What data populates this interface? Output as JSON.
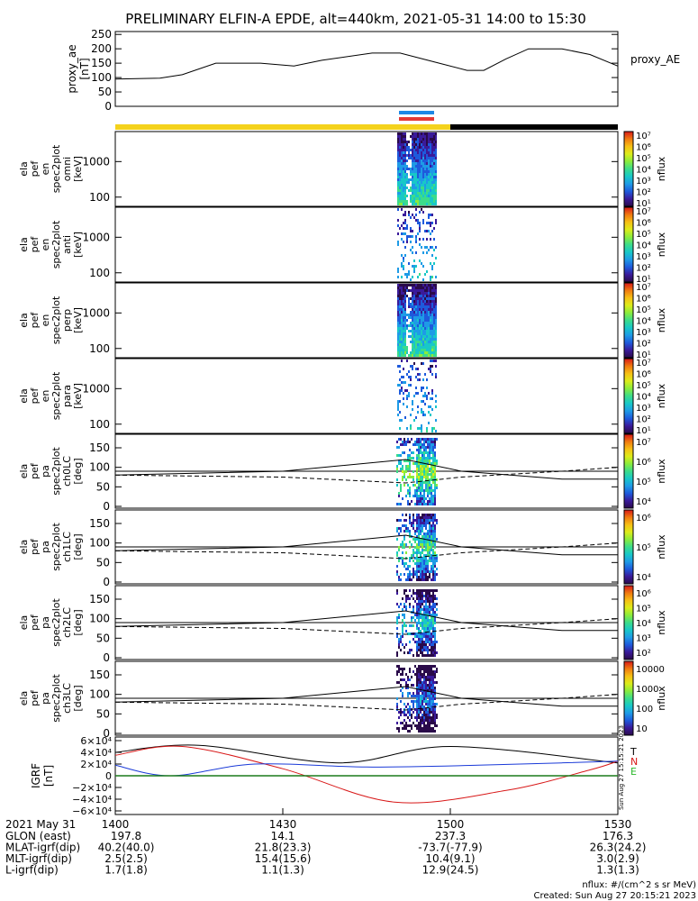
{
  "title": "PRELIMINARY ELFIN-A EPDE, alt=440km, 2021-05-31 14:00 to 15:30",
  "colors": {
    "gold": "#f4d21c",
    "black": "#000000",
    "blue": "#1e88e5",
    "red": "#e53935"
  },
  "chart_data": [
    {
      "type": "line",
      "panel": "proxy_ae",
      "ylabel": [
        "proxy_ae",
        "[nT]"
      ],
      "legend": "proxy_AE",
      "yticks": [
        "0",
        "50",
        "100",
        "150",
        "200",
        "250"
      ],
      "ylim": [
        0,
        260
      ],
      "xlim_min": [
        0,
        90
      ],
      "series": [
        {
          "name": "proxy_AE",
          "x": [
            0,
            8,
            12,
            18,
            26,
            32,
            37,
            46,
            51,
            58,
            63,
            66,
            70,
            74,
            80,
            85,
            90
          ],
          "y": [
            95,
            98,
            110,
            150,
            150,
            140,
            160,
            185,
            185,
            150,
            125,
            125,
            165,
            200,
            200,
            180,
            140
          ]
        }
      ]
    },
    {
      "type": "spectrogram",
      "panels": [
        {
          "ylabel": [
            "ela",
            "pef",
            "en",
            "spec2plot",
            "omni",
            "[keV]"
          ],
          "yticks": [
            "100",
            "1000"
          ],
          "cbar_ticks": [
            "10¹",
            "10²",
            "10³",
            "10⁴",
            "10⁵",
            "10⁶",
            "10⁷"
          ],
          "cbar_label": "nflux"
        },
        {
          "ylabel": [
            "ela",
            "pef",
            "en",
            "spec2plot",
            "anti",
            "[keV]"
          ],
          "yticks": [
            "100",
            "1000"
          ],
          "cbar_ticks": [
            "10¹",
            "10²",
            "10³",
            "10⁴",
            "10⁵",
            "10⁶",
            "10⁷"
          ],
          "cbar_label": "nflux"
        },
        {
          "ylabel": [
            "ela",
            "pef",
            "en",
            "spec2plot",
            "perp",
            "[keV]"
          ],
          "yticks": [
            "100",
            "1000"
          ],
          "cbar_ticks": [
            "10¹",
            "10²",
            "10³",
            "10⁴",
            "10⁵",
            "10⁶",
            "10⁷"
          ],
          "cbar_label": "nflux"
        },
        {
          "ylabel": [
            "ela",
            "pef",
            "en",
            "spec2plot",
            "para",
            "[keV]"
          ],
          "yticks": [
            "100",
            "1000"
          ],
          "cbar_ticks": [
            "10¹",
            "10²",
            "10³",
            "10⁴",
            "10⁵",
            "10⁶",
            "10⁷"
          ],
          "cbar_label": "nflux"
        }
      ]
    },
    {
      "type": "spectrogram",
      "panels": [
        {
          "ylabel": [
            "ela",
            "pef",
            "pa",
            "spec2plot",
            "ch0LC",
            "[deg]"
          ],
          "yticks": [
            "0",
            "50",
            "100",
            "150"
          ],
          "cbar_ticks": [
            "10⁴",
            "10⁵",
            "10⁶",
            "10⁷"
          ],
          "cbar_label": "nflux"
        },
        {
          "ylabel": [
            "ela",
            "pef",
            "pa",
            "spec2plot",
            "ch1LC",
            "[deg]"
          ],
          "yticks": [
            "0",
            "50",
            "100",
            "150"
          ],
          "cbar_ticks": [
            "10⁴",
            "10⁵",
            "10⁶"
          ],
          "cbar_label": "nflux"
        },
        {
          "ylabel": [
            "ela",
            "pef",
            "pa",
            "spec2plot",
            "ch2LC",
            "[deg]"
          ],
          "yticks": [
            "0",
            "50",
            "100",
            "150"
          ],
          "cbar_ticks": [
            "10²",
            "10³",
            "10⁴",
            "10⁵",
            "10⁶"
          ],
          "cbar_label": "nflux"
        },
        {
          "ylabel": [
            "ela",
            "pef",
            "pa",
            "spec2plot",
            "ch3LC",
            "[deg]"
          ],
          "yticks": [
            "0",
            "50",
            "100",
            "150"
          ],
          "cbar_ticks": [
            "10",
            "100",
            "1000",
            "10000"
          ],
          "cbar_label": "nflux"
        }
      ],
      "loss_cone_deg": {
        "x": [
          0,
          30,
          52,
          62,
          80,
          90
        ],
        "upper": [
          80,
          90,
          120,
          90,
          70,
          70
        ],
        "lower_dashed": [
          80,
          75,
          60,
          75,
          90,
          100
        ]
      }
    },
    {
      "type": "line",
      "panel": "igrf",
      "ylabel": [
        "IGRF",
        "[nT]"
      ],
      "yticks": [
        "−6×10⁴",
        "−4×10⁴",
        "−2×10⁴",
        "0",
        "2×10⁴",
        "4×10⁴",
        "6×10⁴"
      ],
      "ylim": [
        -60000,
        60000
      ],
      "legend": [
        "T",
        "N",
        "E"
      ],
      "series": [
        {
          "name": "T",
          "x": [
            0,
            15,
            40,
            60,
            90
          ],
          "y": [
            40000,
            52000,
            22000,
            50000,
            22000
          ]
        },
        {
          "name": "N",
          "x": [
            0,
            12,
            30,
            50,
            70,
            85,
            90
          ],
          "y": [
            35000,
            50000,
            12000,
            -45000,
            -25000,
            10000,
            25000
          ]
        },
        {
          "name": "E",
          "x": [
            0,
            10,
            25,
            45,
            65,
            80,
            90
          ],
          "y": [
            18000,
            0,
            20000,
            15000,
            18000,
            22000,
            25000
          ]
        },
        {
          "name": "",
          "x": [
            0,
            90
          ],
          "y": [
            0,
            0
          ]
        }
      ]
    }
  ],
  "time_axis": {
    "date": "2021 May 31",
    "ticks": [
      "1400",
      "1430",
      "1500",
      "1530"
    ]
  },
  "orbit_rows": [
    {
      "label": "GLON (east)",
      "values": [
        "197.8",
        "14.1",
        "237.3",
        "176.3"
      ]
    },
    {
      "label": "MLAT-igrf(dip)",
      "values": [
        "40.2(40.0)",
        "21.8(23.3)",
        "-73.7(-77.9)",
        "26.3(24.2)"
      ]
    },
    {
      "label": "MLT-igrf(dip)",
      "values": [
        "2.5(2.5)",
        "15.4(15.6)",
        "10.4(9.1)",
        "3.0(2.9)"
      ]
    },
    {
      "label": "L-igrf(dip)",
      "values": [
        "1.7(1.8)",
        "1.1(1.3)",
        "12.9(24.5)",
        "1.3(1.3)"
      ]
    }
  ],
  "footer": {
    "units": "nflux: #/(cm^2 s sr MeV)",
    "created": "Created: Sun Aug 27 20:15:21 2023",
    "side_stamp": "Sun Aug 27 15:15:21 2023"
  }
}
